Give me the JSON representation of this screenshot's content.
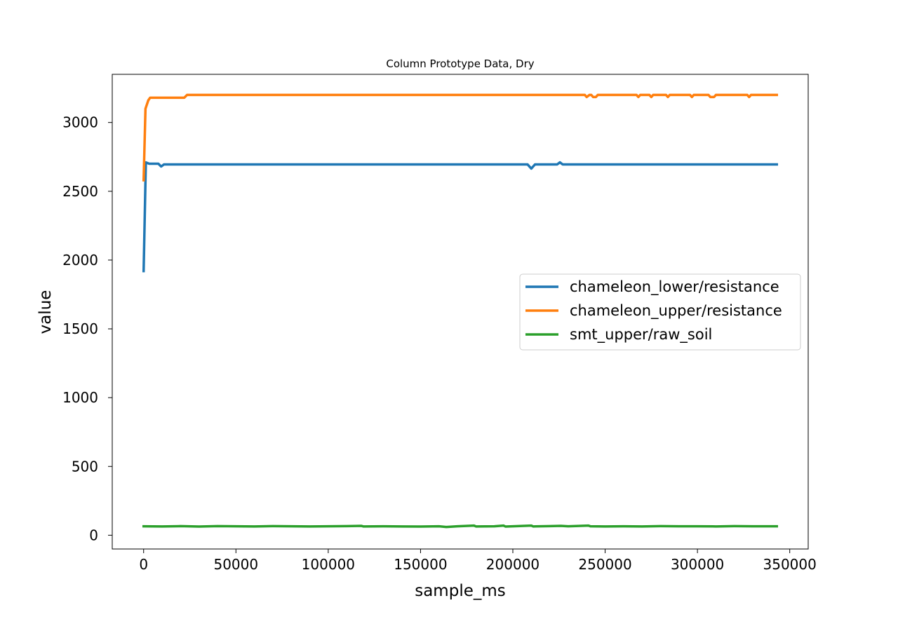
{
  "chart_data": {
    "type": "line",
    "title": "Column Prototype Data, Dry",
    "xlabel": "sample_ms",
    "ylabel": "value",
    "xlim": [
      -17000,
      360000
    ],
    "ylim": [
      -100,
      3350
    ],
    "x_ticks": [
      0,
      50000,
      100000,
      150000,
      200000,
      250000,
      300000,
      350000
    ],
    "x_tick_labels": [
      "0",
      "50000",
      "100000",
      "150000",
      "200000",
      "250000",
      "300000",
      "350000"
    ],
    "y_ticks": [
      0,
      500,
      1000,
      1500,
      2000,
      2500,
      3000
    ],
    "y_tick_labels": [
      "0",
      "500",
      "1000",
      "1500",
      "2000",
      "2500",
      "3000"
    ],
    "grid": false,
    "legend_position": "center-right",
    "series": [
      {
        "name": "chameleon_lower/resistance",
        "color": "#1f77b4",
        "points": [
          [
            0,
            1920
          ],
          [
            1200,
            2710
          ],
          [
            3000,
            2700
          ],
          [
            8000,
            2700
          ],
          [
            9500,
            2680
          ],
          [
            11000,
            2695
          ],
          [
            50000,
            2695
          ],
          [
            100000,
            2695
          ],
          [
            150000,
            2695
          ],
          [
            208000,
            2695
          ],
          [
            210000,
            2665
          ],
          [
            212000,
            2695
          ],
          [
            224000,
            2695
          ],
          [
            225500,
            2710
          ],
          [
            227000,
            2695
          ],
          [
            260000,
            2695
          ],
          [
            300000,
            2695
          ],
          [
            343000,
            2695
          ]
        ]
      },
      {
        "name": "chameleon_upper/resistance",
        "color": "#ff7f0e",
        "points": [
          [
            0,
            2580
          ],
          [
            1000,
            3100
          ],
          [
            2500,
            3160
          ],
          [
            3500,
            3180
          ],
          [
            22000,
            3180
          ],
          [
            23500,
            3200
          ],
          [
            100000,
            3200
          ],
          [
            200000,
            3200
          ],
          [
            239000,
            3200
          ],
          [
            240000,
            3185
          ],
          [
            241500,
            3200
          ],
          [
            242500,
            3200
          ],
          [
            243500,
            3185
          ],
          [
            245000,
            3185
          ],
          [
            246000,
            3200
          ],
          [
            267000,
            3200
          ],
          [
            268000,
            3185
          ],
          [
            269000,
            3200
          ],
          [
            274000,
            3200
          ],
          [
            275000,
            3185
          ],
          [
            276000,
            3200
          ],
          [
            283000,
            3200
          ],
          [
            284000,
            3185
          ],
          [
            285000,
            3200
          ],
          [
            296000,
            3200
          ],
          [
            297000,
            3185
          ],
          [
            298000,
            3200
          ],
          [
            306000,
            3200
          ],
          [
            307000,
            3185
          ],
          [
            309000,
            3185
          ],
          [
            310000,
            3200
          ],
          [
            327000,
            3200
          ],
          [
            328000,
            3185
          ],
          [
            329000,
            3200
          ],
          [
            343000,
            3200
          ]
        ]
      },
      {
        "name": "smt_upper/raw_soil",
        "color": "#2ca02c",
        "points": [
          [
            0,
            65
          ],
          [
            10000,
            64
          ],
          [
            20000,
            66
          ],
          [
            30000,
            63
          ],
          [
            40000,
            66
          ],
          [
            50000,
            65
          ],
          [
            60000,
            64
          ],
          [
            70000,
            66
          ],
          [
            80000,
            65
          ],
          [
            90000,
            64
          ],
          [
            100000,
            65
          ],
          [
            110000,
            66
          ],
          [
            118000,
            68
          ],
          [
            119000,
            64
          ],
          [
            130000,
            65
          ],
          [
            140000,
            64
          ],
          [
            150000,
            63
          ],
          [
            160000,
            65
          ],
          [
            164000,
            60
          ],
          [
            170000,
            65
          ],
          [
            179000,
            70
          ],
          [
            180000,
            64
          ],
          [
            190000,
            65
          ],
          [
            195000,
            70
          ],
          [
            196000,
            63
          ],
          [
            200000,
            65
          ],
          [
            210000,
            70
          ],
          [
            211000,
            64
          ],
          [
            220000,
            66
          ],
          [
            226000,
            68
          ],
          [
            230000,
            65
          ],
          [
            241000,
            70
          ],
          [
            242000,
            65
          ],
          [
            250000,
            64
          ],
          [
            260000,
            65
          ],
          [
            270000,
            64
          ],
          [
            280000,
            66
          ],
          [
            290000,
            65
          ],
          [
            300000,
            65
          ],
          [
            310000,
            64
          ],
          [
            320000,
            66
          ],
          [
            330000,
            65
          ],
          [
            343000,
            65
          ]
        ]
      }
    ]
  }
}
